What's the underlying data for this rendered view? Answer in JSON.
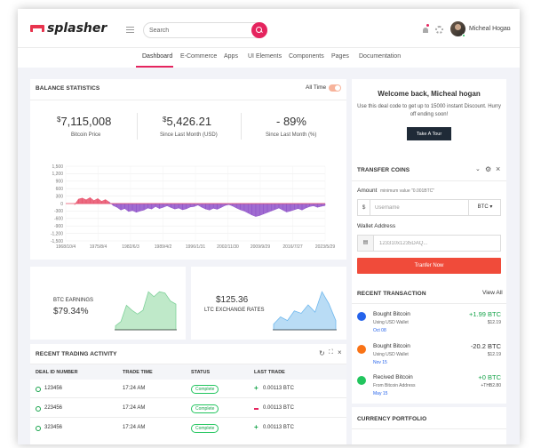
{
  "brand": {
    "name": "splasher"
  },
  "search": {
    "placeholder": "Search"
  },
  "user": {
    "name": "Micheal Hogan"
  },
  "nav": {
    "items": [
      "Dashboard",
      "E-Commerce",
      "Apps",
      "UI Elements",
      "Components",
      "Pages",
      "Documentation"
    ],
    "active": "Dashboard"
  },
  "balance": {
    "title": "BALANCE STATISTICS",
    "filter_label": "All Time",
    "stats": [
      {
        "currency": "$",
        "value": "7,115,008",
        "label": "Bitcoin Price"
      },
      {
        "currency": "$",
        "value": "5,426.21",
        "label": "Since Last Month (USD)"
      },
      {
        "currency": "",
        "value": "- 89%",
        "label": "Since Last Month (%)"
      }
    ]
  },
  "chart_data": {
    "type": "area",
    "title": "",
    "xlabel": "",
    "ylabel": "",
    "y_ticks": [
      "1,500",
      "1,200",
      "900",
      "600",
      "300",
      "0",
      "-300",
      "-600",
      "-900",
      "-1,200",
      "-1,500"
    ],
    "x_ticks": [
      "1968/10/4",
      "1975/8/4",
      "1982/6/3",
      "1989/4/2",
      "1996/1/31",
      "2002/11/30",
      "2009/9/29",
      "2016/7/27",
      "2023/5/29"
    ],
    "ylim": [
      -1500,
      1500
    ],
    "grid": true,
    "colors": {
      "positive": "#e8516b",
      "negative": "#8f52c9"
    },
    "series": [
      {
        "values": [
          -50,
          180,
          220,
          150,
          240,
          120,
          200,
          90,
          160,
          60,
          -80,
          -150,
          -260,
          -200,
          -320,
          -280,
          -350,
          -300,
          -260,
          -180,
          -220,
          -120,
          -200,
          -150,
          -90,
          -160,
          -220,
          -180,
          -250,
          -210,
          -140,
          -120,
          -60,
          -150,
          -220,
          -260,
          -190,
          -230,
          -160,
          -80,
          -40,
          -100,
          -180,
          -250,
          -300,
          -380,
          -460,
          -520,
          -480,
          -420,
          -360,
          -300,
          -240,
          -180,
          -260,
          -340,
          -300,
          -250,
          -200,
          -260,
          -180,
          -120,
          -90,
          -150,
          -110,
          -80
        ]
      }
    ]
  },
  "btc_earnings": {
    "label": "BTC EARNINGS",
    "value": "$79.34%",
    "color": "#bfe9c9",
    "chart_data": {
      "type": "area",
      "values": [
        5,
        12,
        38,
        30,
        24,
        30,
        60,
        52,
        60,
        58,
        45,
        40
      ]
    }
  },
  "ltc_rates": {
    "value": "$125.36",
    "label": "LTC EXCHANGE RATES",
    "color": "#b9dcf5",
    "chart_data": {
      "type": "area",
      "values": [
        8,
        20,
        14,
        30,
        26,
        40,
        28,
        62,
        42,
        14
      ]
    }
  },
  "trading": {
    "title": "RECENT TRADING ACTIVITY",
    "columns": [
      "DEAL ID NUMBER",
      "TRADE TIME",
      "STATUS",
      "LAST TRADE"
    ],
    "rows": [
      {
        "id": "123456",
        "time": "17:24 AM",
        "status": "Complete",
        "trend": "up",
        "trade": "0.00113 BTC"
      },
      {
        "id": "223456",
        "time": "17:24 AM",
        "status": "Complete",
        "trend": "down",
        "trade": "0.00113 BTC"
      },
      {
        "id": "323456",
        "time": "17:24 AM",
        "status": "Complete",
        "trend": "up",
        "trade": "0.00113 BTC"
      }
    ]
  },
  "welcome": {
    "title": "Welcome back, Micheal hogan",
    "text": "Use this deal code to get up to 15000 instant Discount. Hurry off ending soon!",
    "button": "Take A Tour"
  },
  "transfer": {
    "title": "TRANSFER COINS",
    "amount_label": "Amount",
    "amount_hint": "minimum value \"0.001BTC\"",
    "currency_symbol": "$",
    "amount_placeholder": "Username",
    "currency": "BTC",
    "wallet_label": "Wallet Address",
    "wallet_placeholder": "123310x1235DAQ...",
    "button": "Tranfer Now"
  },
  "transactions": {
    "title": "RECENT TRANSACTION",
    "view_all": "View All",
    "items": [
      {
        "title": "Bought Bitcoin",
        "sub": "Using USD Wallet",
        "date": "Oct 08",
        "amount": "+1.99 BTC",
        "usd": "$12.19",
        "color": "#2563eb",
        "amount_color": "#16a34a"
      },
      {
        "title": "Bought Bitcoin",
        "sub": "Using USD Wallet",
        "date": "Nov 15",
        "amount": "-20.2 BTC",
        "usd": "$12.19",
        "color": "#f97316",
        "amount_color": "#333333"
      },
      {
        "title": "Recived Bitcoin",
        "sub": "From Bitcoin Address",
        "date": "May 15",
        "amount": "+0 BTC",
        "usd": "+THB2.80",
        "color": "#22c55e",
        "amount_color": "#16a34a"
      }
    ]
  },
  "portfolio": {
    "title": "CURRENCY PORTFOLIO"
  }
}
